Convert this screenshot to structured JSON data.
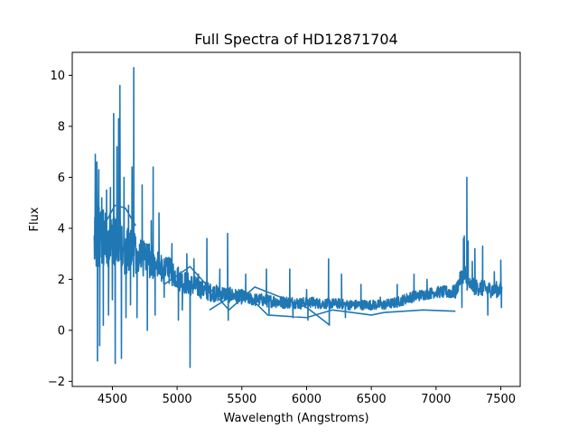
{
  "chart_data": {
    "type": "line",
    "title": "Full Spectra of HD12871704",
    "xlabel": "Wavelength (Angstroms)",
    "ylabel": "Flux",
    "xlim": [
      4190,
      7650
    ],
    "ylim": [
      -2.2,
      10.9
    ],
    "xticks": [
      4500,
      5000,
      5500,
      6000,
      6500,
      7000,
      7500
    ],
    "xtick_labels": [
      "4500",
      "5000",
      "5500",
      "6000",
      "6500",
      "7000",
      "7500"
    ],
    "yticks": [
      -2,
      0,
      2,
      4,
      6,
      8,
      10
    ],
    "ytick_labels": [
      "−2",
      "0",
      "2",
      "4",
      "6",
      "8",
      "10"
    ],
    "grid": false,
    "legend": "none",
    "series": [
      {
        "color": "#1f77b4",
        "x_range": [
          4360,
          7510
        ],
        "anchors": {
          "x": [
            4360,
            4400,
            4450,
            4500,
            4550,
            4600,
            4650,
            4700,
            4750,
            4800,
            4850,
            4900,
            4950,
            5000,
            5050,
            5100,
            5150,
            5200,
            5250,
            5300,
            5350,
            5400,
            5450,
            5500,
            5550,
            5600,
            5650,
            5700,
            5750,
            5800,
            5850,
            5900,
            5950,
            6000,
            6050,
            6100,
            6150,
            6200,
            6250,
            6300,
            6350,
            6400,
            6450,
            6500,
            6550,
            6600,
            6650,
            6700,
            6750,
            6800,
            6850,
            6900,
            6950,
            7000,
            7050,
            7100,
            7150,
            7200,
            7250,
            7300,
            7350,
            7400,
            7450,
            7510
          ],
          "y": [
            3.6,
            3.7,
            3.6,
            3.6,
            3.3,
            3.2,
            3.0,
            2.9,
            2.8,
            2.7,
            2.5,
            2.4,
            2.3,
            2.1,
            1.9,
            1.8,
            1.7,
            1.6,
            1.5,
            1.45,
            1.45,
            1.4,
            1.35,
            1.3,
            1.25,
            1.2,
            1.2,
            1.15,
            1.15,
            1.1,
            1.1,
            1.1,
            1.05,
            1.1,
            1.1,
            1.05,
            1.05,
            1.05,
            1.05,
            1.0,
            1.0,
            1.0,
            1.0,
            1.0,
            1.0,
            1.0,
            1.05,
            1.1,
            1.2,
            1.3,
            1.35,
            1.4,
            1.45,
            1.5,
            1.5,
            1.5,
            1.5,
            2.2,
            1.8,
            1.7,
            1.65,
            1.6,
            1.6,
            1.6
          ]
        },
        "noise_anchors": {
          "x": [
            4360,
            4450,
            4550,
            4700,
            4850,
            5000,
            5200,
            5400,
            5600,
            5800,
            6000,
            6200,
            6400,
            6600,
            6800,
            7000,
            7200,
            7300,
            7510
          ],
          "y": [
            1.3,
            1.2,
            1.1,
            0.8,
            0.6,
            0.5,
            0.38,
            0.3,
            0.25,
            0.25,
            0.22,
            0.2,
            0.2,
            0.2,
            0.22,
            0.22,
            0.3,
            0.32,
            0.32
          ]
        },
        "features": [
          {
            "x": 4368,
            "y": 6.9
          },
          {
            "x": 4380,
            "y": 6.6
          },
          {
            "x": 4385,
            "y": -1.2
          },
          {
            "x": 4395,
            "y": 6.3
          },
          {
            "x": 4402,
            "y": -0.6
          },
          {
            "x": 4418,
            "y": 5.2
          },
          {
            "x": 4430,
            "y": 0.2
          },
          {
            "x": 4455,
            "y": 5.5
          },
          {
            "x": 4470,
            "y": 0.6
          },
          {
            "x": 4485,
            "y": 5.6
          },
          {
            "x": 4500,
            "y": 1.2
          },
          {
            "x": 4510,
            "y": 8.5
          },
          {
            "x": 4522,
            "y": -1.3
          },
          {
            "x": 4535,
            "y": 7.2
          },
          {
            "x": 4548,
            "y": 8.3
          },
          {
            "x": 4558,
            "y": 9.6
          },
          {
            "x": 4570,
            "y": -1.1
          },
          {
            "x": 4590,
            "y": 6.0
          },
          {
            "x": 4605,
            "y": 0.5
          },
          {
            "x": 4625,
            "y": 4.9
          },
          {
            "x": 4640,
            "y": 1.0
          },
          {
            "x": 4652,
            "y": 6.4
          },
          {
            "x": 4665,
            "y": 10.3
          },
          {
            "x": 4690,
            "y": 0.5
          },
          {
            "x": 4730,
            "y": 5.7
          },
          {
            "x": 4770,
            "y": 0.0
          },
          {
            "x": 4800,
            "y": 4.3
          },
          {
            "x": 4815,
            "y": 6.4
          },
          {
            "x": 4830,
            "y": 0.6
          },
          {
            "x": 4860,
            "y": 4.6
          },
          {
            "x": 4900,
            "y": 1.3
          },
          {
            "x": 4960,
            "y": 3.4
          },
          {
            "x": 5010,
            "y": 0.4
          },
          {
            "x": 5040,
            "y": 0.8
          },
          {
            "x": 5075,
            "y": 3.0
          },
          {
            "x": 5100,
            "y": -1.45
          },
          {
            "x": 5130,
            "y": 2.8
          },
          {
            "x": 5165,
            "y": 2.2
          },
          {
            "x": 5230,
            "y": 3.6
          },
          {
            "x": 5290,
            "y": 1.7
          },
          {
            "x": 5330,
            "y": 2.4
          },
          {
            "x": 5390,
            "y": 3.8
          },
          {
            "x": 5395,
            "y": 0.4
          },
          {
            "x": 5530,
            "y": 2.2
          },
          {
            "x": 5690,
            "y": 2.4
          },
          {
            "x": 5710,
            "y": 0.6
          },
          {
            "x": 5870,
            "y": 2.4
          },
          {
            "x": 5895,
            "y": 0.5
          },
          {
            "x": 6000,
            "y": 1.6
          },
          {
            "x": 6010,
            "y": 0.4
          },
          {
            "x": 6170,
            "y": 2.8
          },
          {
            "x": 6175,
            "y": 0.2
          },
          {
            "x": 6270,
            "y": 2.2
          },
          {
            "x": 6300,
            "y": 0.5
          },
          {
            "x": 6420,
            "y": 1.8
          },
          {
            "x": 6570,
            "y": 1.3
          },
          {
            "x": 6700,
            "y": 1.8
          },
          {
            "x": 6830,
            "y": 2.2
          },
          {
            "x": 6930,
            "y": 2.0
          },
          {
            "x": 7200,
            "y": 0.9
          },
          {
            "x": 7212,
            "y": 3.6
          },
          {
            "x": 7218,
            "y": 3.7
          },
          {
            "x": 7225,
            "y": 2.5
          },
          {
            "x": 7238,
            "y": 6.0
          },
          {
            "x": 7248,
            "y": 3.5
          },
          {
            "x": 7280,
            "y": 2.7
          },
          {
            "x": 7300,
            "y": 3.2
          },
          {
            "x": 7360,
            "y": 3.3
          },
          {
            "x": 7400,
            "y": 0.6
          },
          {
            "x": 7450,
            "y": 2.3
          },
          {
            "x": 7500,
            "y": 2.75
          },
          {
            "x": 7505,
            "y": 0.9
          }
        ],
        "segment_order_jumps": [
          {
            "x": [
              4400,
              4520,
              4600,
              4680
            ],
            "y": [
              3.8,
              4.9,
              4.8,
              4.1
            ]
          },
          {
            "x": [
              4900,
              5100,
              5400,
              5600,
              6000,
              6180
            ],
            "y": [
              1.8,
              2.5,
              0.8,
              1.7,
              0.9,
              0.2
            ]
          },
          {
            "x": [
              5250,
              5500,
              5700,
              6000,
              6200,
              6500,
              6600,
              6900,
              7150
            ],
            "y": [
              0.8,
              1.6,
              0.6,
              0.5,
              0.8,
              0.6,
              0.7,
              0.8,
              0.75
            ]
          }
        ]
      }
    ]
  }
}
